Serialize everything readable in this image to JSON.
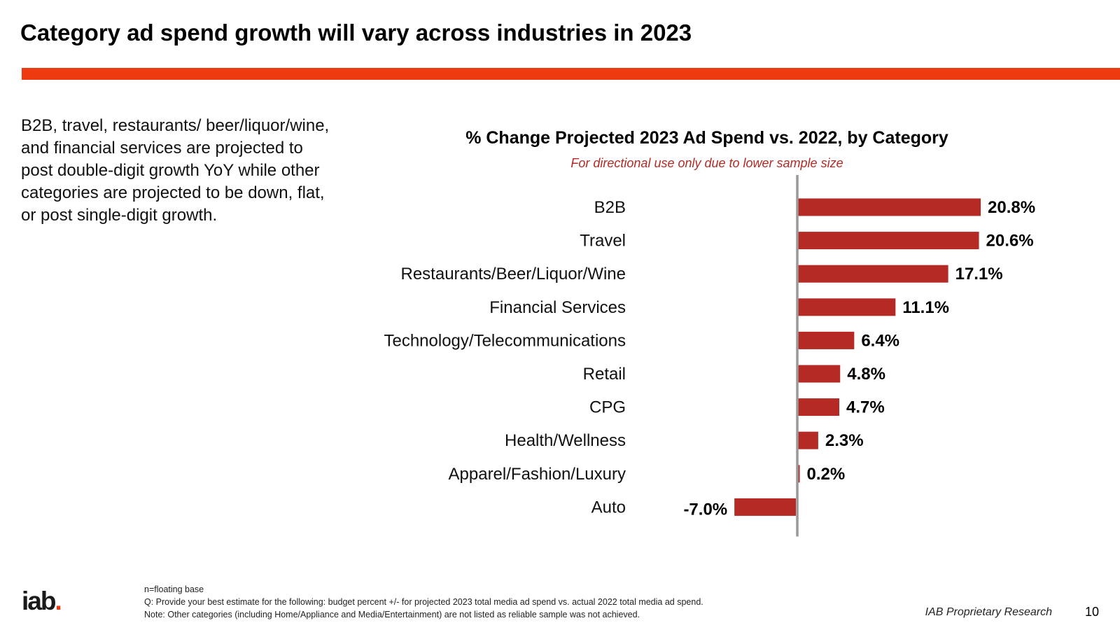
{
  "slide": {
    "title": "Category ad spend growth will vary across industries in 2023",
    "summary": "B2B, travel, restaurants/ beer/liquor/wine, and financial services are projected to post double-digit growth YoY while other categories are projected to be down, flat, or post single-digit growth.",
    "footnotes": {
      "base": "n=floating base",
      "question": "Q: Provide your best estimate for the following: budget percent +/- for projected 2023 total media ad spend vs. actual 2022 total media ad spend.",
      "note": "Note: Other categories (including Home/Appliance and Media/Entertainment) are not listed as reliable sample was not achieved."
    },
    "logo_text": "iab",
    "logo_dot": ".",
    "proprietary": "IAB Proprietary Research",
    "page_number": "10"
  },
  "colors": {
    "accent": "#ee3a0f",
    "bar": "#b52a24",
    "axis": "#999999"
  },
  "chart_data": {
    "type": "bar",
    "orientation": "horizontal",
    "title": "% Change Projected 2023 Ad Spend vs. 2022, by Category",
    "subtitle": "For directional use only due to lower sample size",
    "categories": [
      "B2B",
      "Travel",
      "Restaurants/Beer/Liquor/Wine",
      "Financial Services",
      "Technology/Telecommunications",
      "Retail",
      "CPG",
      "Health/Wellness",
      "Apparel/Fashion/Luxury",
      "Auto"
    ],
    "values": [
      20.8,
      20.6,
      17.1,
      11.1,
      6.4,
      4.8,
      4.7,
      2.3,
      0.2,
      -7.0
    ],
    "data_labels": [
      "20.8%",
      "20.6%",
      "17.1%",
      "11.1%",
      "6.4%",
      "4.8%",
      "4.7%",
      "2.3%",
      "0.2%",
      "-7.0%"
    ],
    "xlabel": "",
    "ylabel": "",
    "grid": false
  }
}
